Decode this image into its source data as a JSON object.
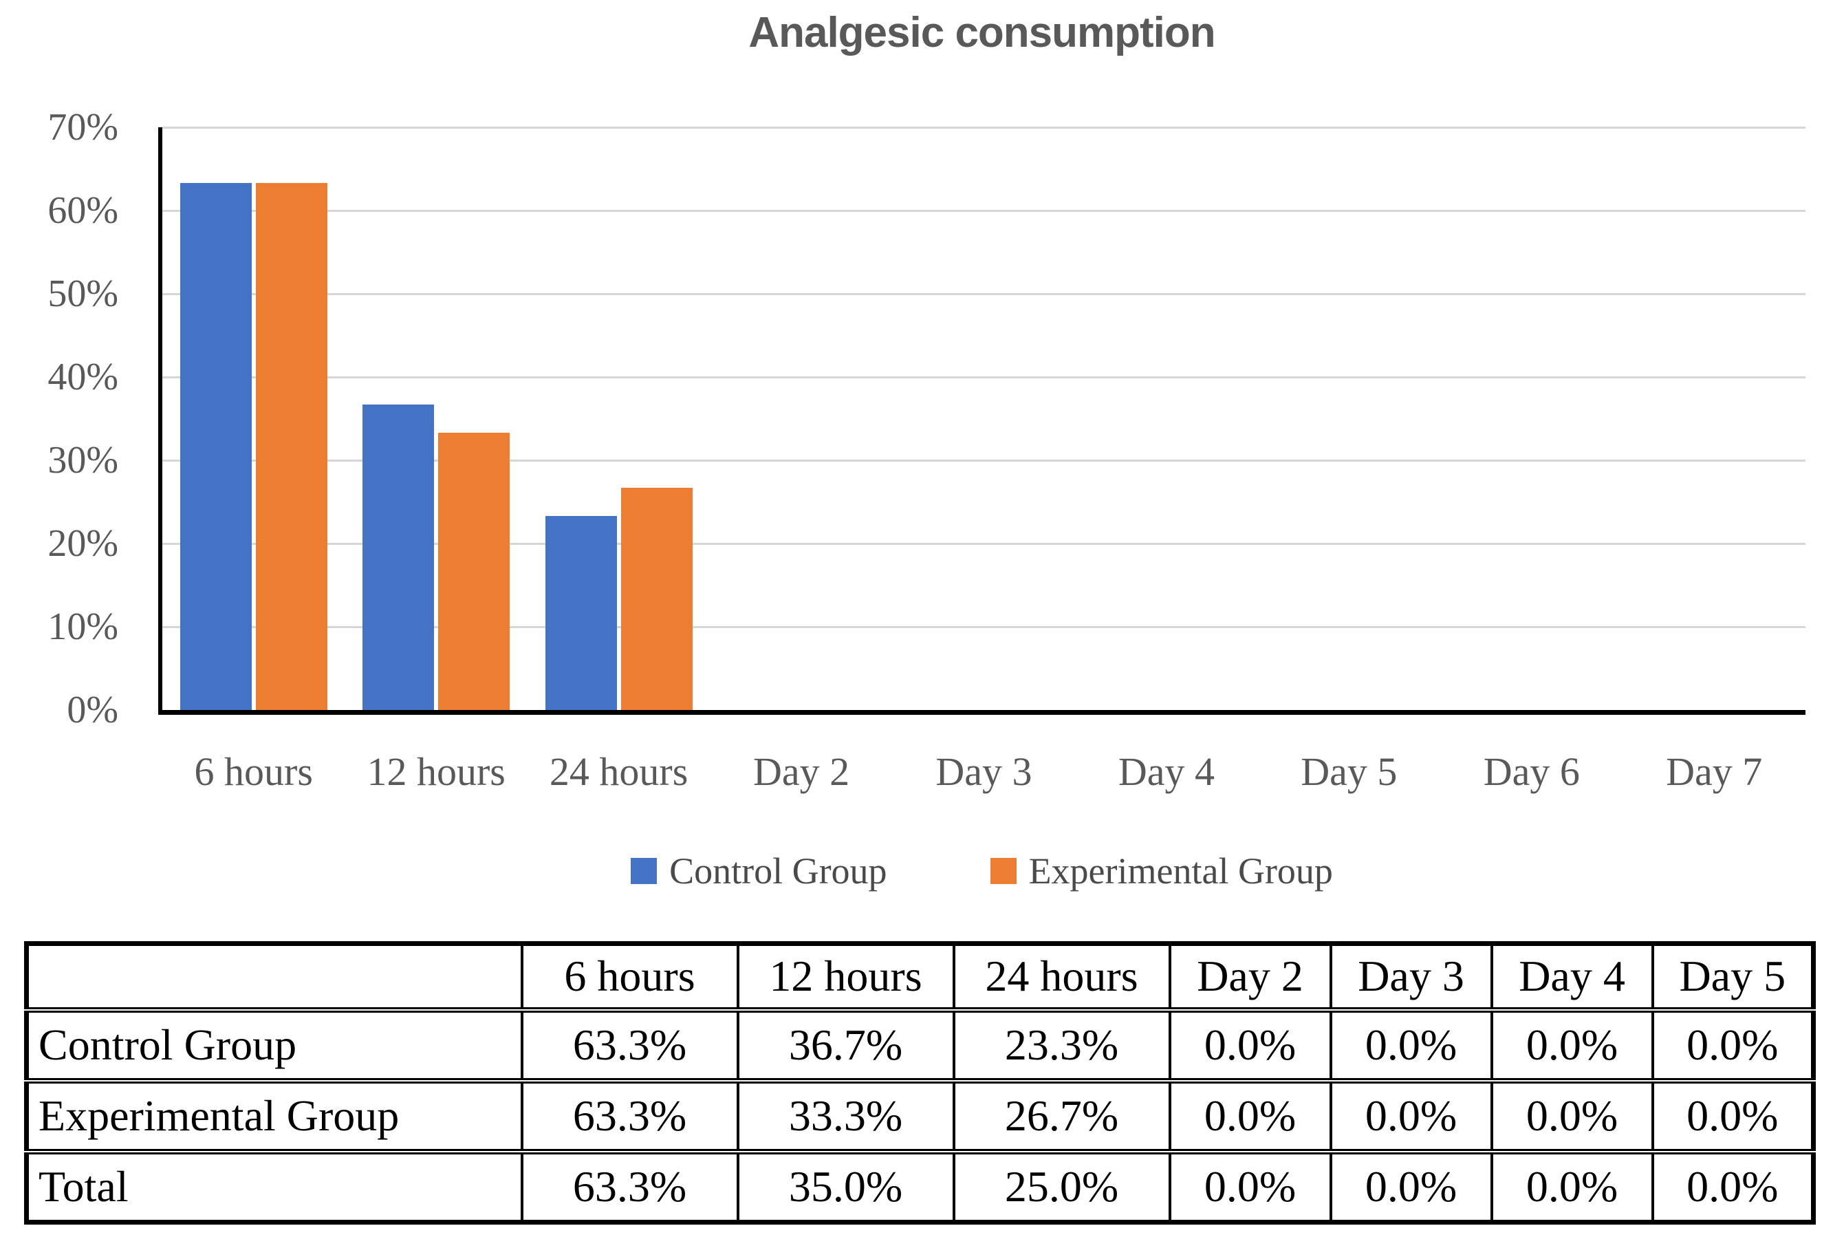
{
  "figure": {
    "background": "#ffffff"
  },
  "chart_data": {
    "type": "bar",
    "title": "Analgesic consumption",
    "categories": [
      "6 hours",
      "12 hours",
      "24 hours",
      "Day 2",
      "Day 3",
      "Day 4",
      "Day 5",
      "Day 6",
      "Day 7"
    ],
    "series": [
      {
        "name": "Control Group",
        "color": "#4472C4",
        "values": [
          63.3,
          36.7,
          23.3,
          0,
          0,
          0,
          0,
          0,
          0
        ]
      },
      {
        "name": "Experimental Group",
        "color": "#ED7D31",
        "values": [
          63.3,
          33.3,
          26.7,
          0,
          0,
          0,
          0,
          0,
          0
        ]
      }
    ],
    "xlabel": "",
    "ylabel": "",
    "ylim": [
      0,
      70
    ],
    "ytick_step": 10,
    "ytick_labels_top_to_bottom": [
      "70%",
      "60%",
      "50%",
      "40%",
      "30%",
      "20%",
      "10%",
      "0%"
    ],
    "grid": "horizontal",
    "gridline_color": "#d6d6d6",
    "axis_color": "#000000",
    "tick_label_color": "#595959",
    "title_color": "#595959",
    "legend_position": "bottom",
    "legend_entries": [
      "Control Group",
      "Experimental Group"
    ]
  },
  "table": {
    "headers": [
      "",
      "6 hours",
      "12 hours",
      "24 hours",
      "Day 2",
      "Day 3",
      "Day 4",
      "Day 5"
    ],
    "rows": [
      {
        "label": "Control Group",
        "values": [
          "63.3%",
          "36.7%",
          "23.3%",
          "0.0%",
          "0.0%",
          "0.0%",
          "0.0%"
        ]
      },
      {
        "label": "Experimental Group",
        "values": [
          "63.3%",
          "33.3%",
          "26.7%",
          "0.0%",
          "0.0%",
          "0.0%",
          "0.0%"
        ]
      },
      {
        "label": "Total",
        "values": [
          "63.3%",
          "35.0%",
          "25.0%",
          "0.0%",
          "0.0%",
          "0.0%",
          "0.0%"
        ]
      }
    ]
  }
}
